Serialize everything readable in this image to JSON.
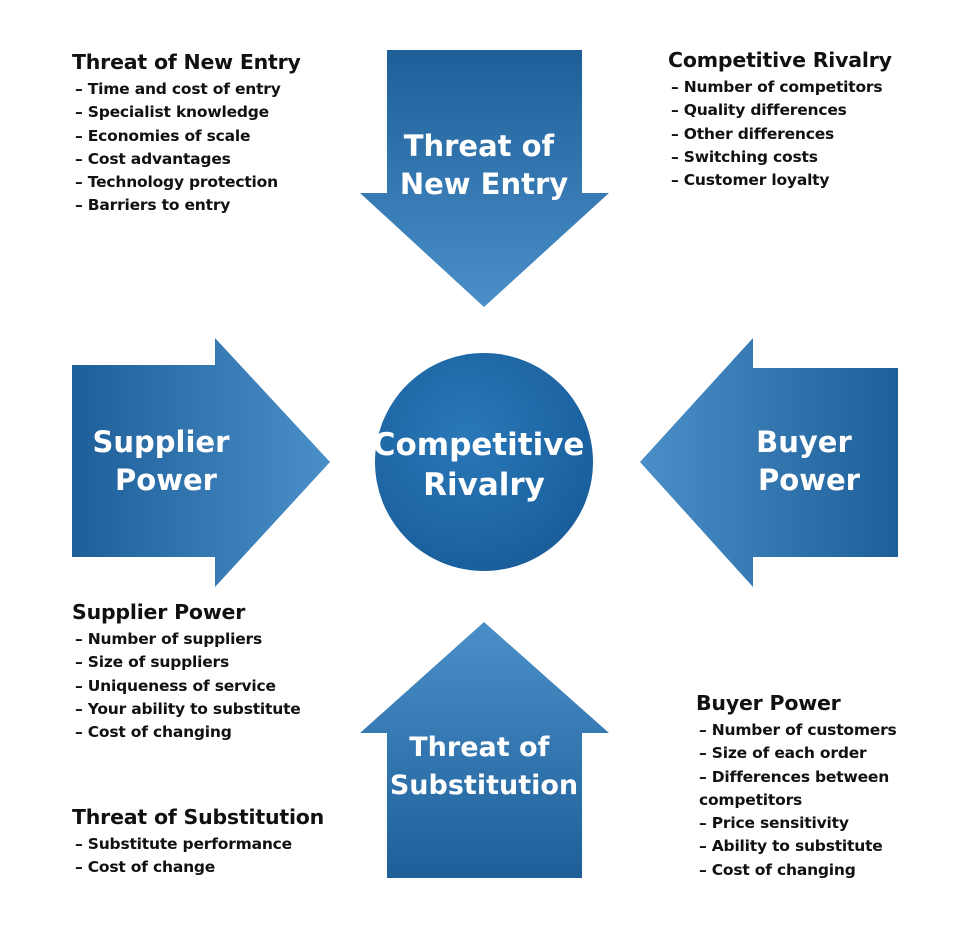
{
  "diagram": {
    "center_label": [
      "Competitive",
      "Rivalry"
    ],
    "arrows": {
      "top": [
        "Threat of",
        "New Entry"
      ],
      "left": [
        "Supplier",
        "Power"
      ],
      "right": [
        "Buyer",
        "Power"
      ],
      "bottom": [
        "Threat of",
        "Substitution"
      ]
    }
  },
  "lists": {
    "new_entry": {
      "title": "Threat of New Entry",
      "items": [
        "Time and cost of entry",
        "Specialist knowledge",
        "Economies of scale",
        "Cost advantages",
        "Technology protection",
        "Barriers to entry"
      ]
    },
    "rivalry": {
      "title": "Competitive Rivalry",
      "items": [
        "Number of competitors",
        "Quality differences",
        "Other differences",
        "Switching costs",
        "Customer loyalty"
      ]
    },
    "supplier": {
      "title": "Supplier Power",
      "items": [
        "Number of suppliers",
        "Size of suppliers",
        "Uniqueness of service",
        "Your ability to substitute",
        "Cost of changing"
      ]
    },
    "buyer": {
      "title": "Buyer Power",
      "items": [
        "Number of customers",
        "Size of each order",
        "Differences between competitors",
        "Price sensitivity",
        "Ability to substitute",
        "Cost of changing"
      ]
    },
    "substitution": {
      "title": "Threat of Substitution",
      "items": [
        "Substitute performance",
        "Cost of change"
      ]
    }
  },
  "colors": {
    "arrow_light": "#4a8fc8",
    "arrow_dark": "#1e5f99",
    "circle": "#1c66a6",
    "text": "#111111",
    "label_text": "#ffffff"
  }
}
